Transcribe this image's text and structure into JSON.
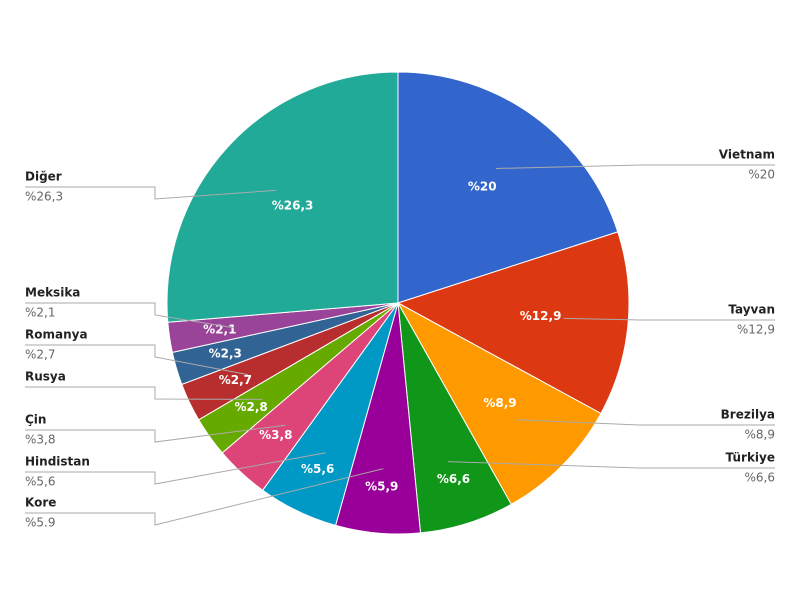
{
  "chart_data": {
    "type": "pie",
    "categories": [
      "Vietnam",
      "Tayvan",
      "Brezilya",
      "Türkiye",
      "Kore",
      "Hindistan",
      "Çin",
      "Rusya",
      "Romanya",
      null,
      "Meksika",
      "Diğer"
    ],
    "values": [
      20,
      12.9,
      8.9,
      6.6,
      5.9,
      5.6,
      3.8,
      2.8,
      2.7,
      2.3,
      2.1,
      26.3
    ],
    "value_labels": [
      "%20",
      "%12,9",
      "%8,9",
      "%6,6",
      "%5,9",
      "%5,6",
      "%3,8",
      "%2,8",
      "%2,7",
      "%2,3",
      "%2,1",
      "%26,3"
    ],
    "outer_labels": [
      "%20",
      "%12,9",
      "%8,9",
      "%6,6",
      "%5.9",
      "%5,6",
      "%3,8",
      null,
      "%2,7",
      null,
      "%2,1",
      "%26,3"
    ],
    "colors": [
      "#3366cc",
      "#dc3912",
      "#ff9900",
      "#109618",
      "#990099",
      "#0099c6",
      "#dd4477",
      "#66aa00",
      "#b82e2e",
      "#316395",
      "#994499",
      "#22aa99"
    ]
  }
}
